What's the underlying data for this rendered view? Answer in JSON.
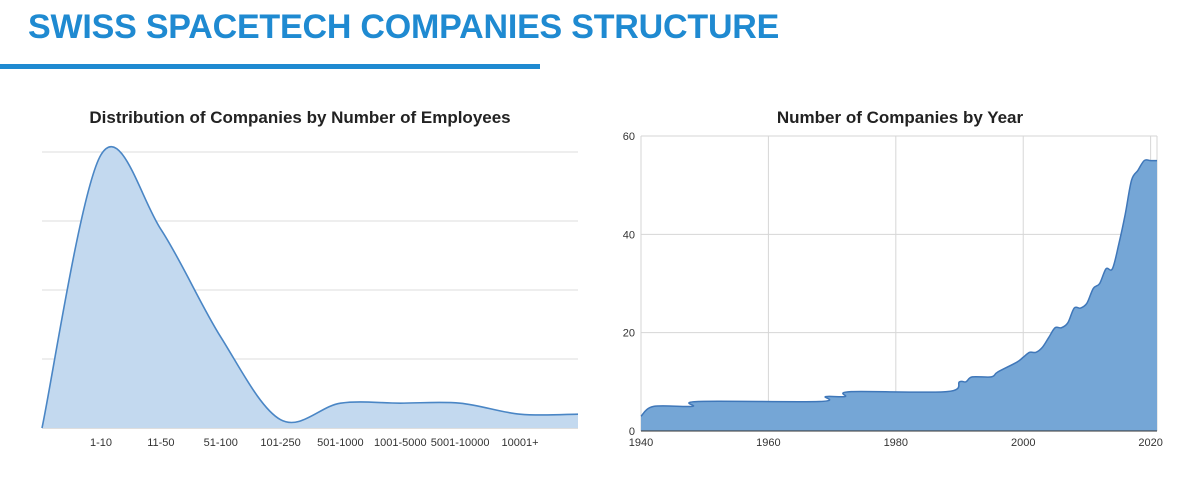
{
  "header": {
    "title": "SWISS SPACETECH COMPANIES STRUCTURE",
    "accent_color": "#1f8ad1"
  },
  "chart_data": [
    {
      "type": "area",
      "title": "Distribution of Companies by Number of Employees",
      "categories": [
        "1-10",
        "11-50",
        "51-100",
        "101-250",
        "501-1000",
        "1001-5000",
        "5001-10000",
        "10001+"
      ],
      "values": [
        99,
        72,
        33,
        3,
        9,
        9,
        9,
        5
      ],
      "start_value": 0,
      "end_value": 5,
      "ylim": [
        0,
        100
      ],
      "smooth": true,
      "grid": true,
      "fill_color": "#c3d9ef",
      "line_color": "#4a86c5"
    },
    {
      "type": "area",
      "title": "Number of Companies by Year",
      "xlim": [
        1940,
        2021
      ],
      "ylim": [
        0,
        60
      ],
      "x_ticks": [
        "1940",
        "1960",
        "1980",
        "2000",
        "2020"
      ],
      "y_ticks": [
        "0",
        "20",
        "40",
        "60"
      ],
      "grid": true,
      "fill_color": "#75a6d6",
      "line_color": "#3f77b9",
      "x": [
        1940,
        1942,
        1948,
        1949,
        1968,
        1969,
        1972,
        1973,
        1988,
        1990,
        1991,
        1992,
        1995,
        1996,
        1999,
        2000,
        2001,
        2002,
        2003,
        2004,
        2005,
        2006,
        2007,
        2008,
        2009,
        2010,
        2011,
        2012,
        2013,
        2014,
        2015,
        2016,
        2017,
        2018,
        2019,
        2020,
        2021
      ],
      "y": [
        3,
        5,
        5,
        6,
        6,
        7,
        7,
        8,
        8,
        10,
        10,
        11,
        11,
        12,
        14,
        15,
        16,
        16,
        17,
        19,
        21,
        21,
        22,
        25,
        25,
        26,
        29,
        30,
        33,
        33,
        38,
        44,
        51,
        53,
        55,
        55,
        55
      ]
    }
  ]
}
